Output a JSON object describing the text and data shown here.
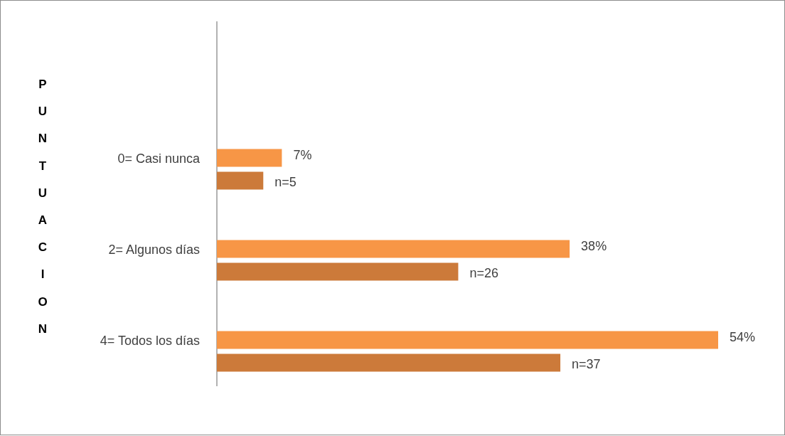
{
  "chart_data": {
    "type": "bar",
    "orientation": "horizontal",
    "ylabel": "PUNTUACION",
    "categories": [
      "0= Casi nunca",
      "2= Algunos días",
      "4= Todos los días"
    ],
    "series": [
      {
        "color": "#f79646",
        "values": [
          7,
          38,
          54
        ],
        "value_labels": [
          "7%",
          "38%",
          "54%"
        ]
      },
      {
        "color": "#cc7a3a",
        "values": [
          5,
          26,
          37
        ],
        "value_labels": [
          "n=5",
          "n=26",
          "n=37"
        ]
      }
    ]
  }
}
